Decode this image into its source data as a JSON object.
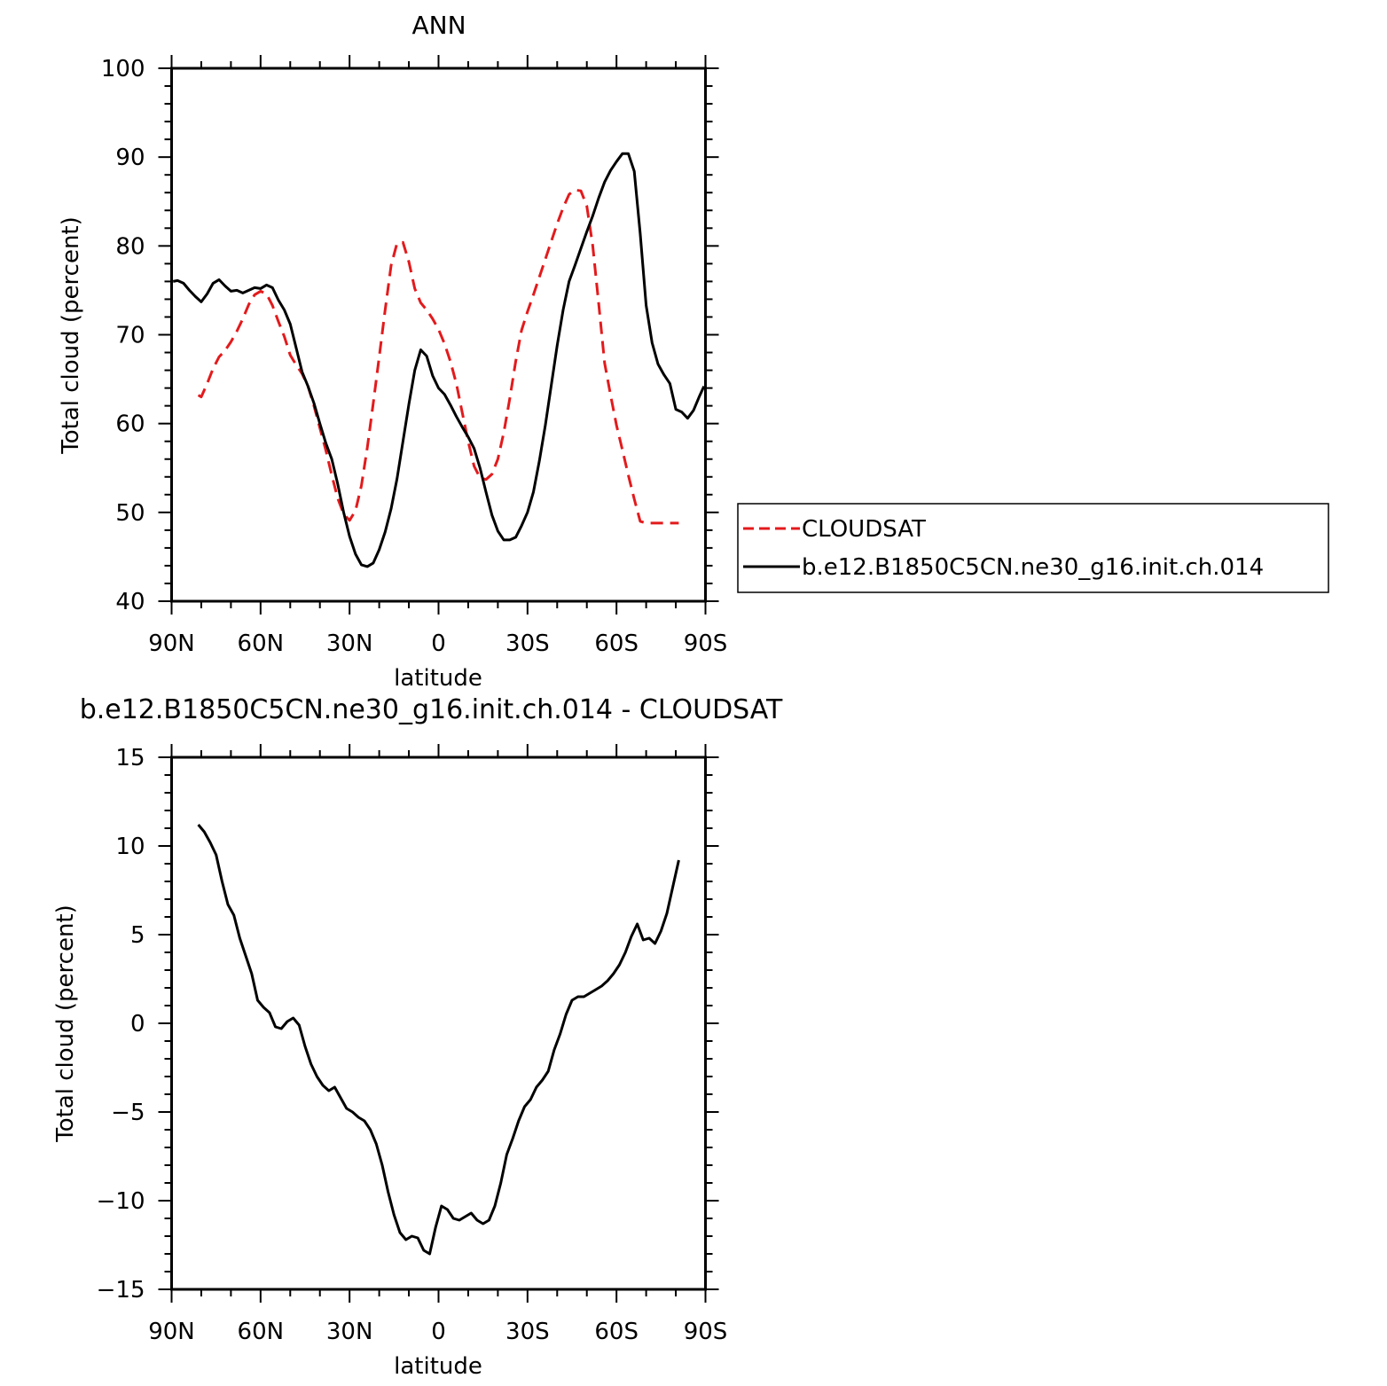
{
  "colors": {
    "cloudsat": "#e31a1c",
    "model": "#000000",
    "axis": "#000000"
  },
  "chart_data": [
    {
      "type": "line",
      "title": "ANN",
      "xlabel": "latitude",
      "ylabel": "Total cloud  (percent)",
      "xlim": [
        90,
        -90
      ],
      "ylim": [
        40,
        100
      ],
      "yticks": [
        40,
        50,
        60,
        70,
        80,
        90,
        100
      ],
      "xticks": [
        90,
        60,
        30,
        0,
        -30,
        -60,
        -90
      ],
      "xticklabels": [
        "90N",
        "60N",
        "30N",
        "0",
        "30S",
        "60S",
        "90S"
      ],
      "legend": {
        "placement": "right",
        "entries": [
          "CLOUDSAT",
          "b.e12.B1850C5CN.ne30_g16.init.ch.014"
        ]
      },
      "series": [
        {
          "name": "CLOUDSAT",
          "style": "dashed",
          "x": [
            81,
            80,
            78,
            76,
            74,
            72,
            70,
            68,
            66,
            64,
            62,
            60,
            58,
            56,
            54,
            52,
            50,
            48,
            46,
            44,
            42,
            40,
            38,
            36,
            34,
            32,
            30,
            28,
            26,
            24,
            22,
            20,
            18,
            16,
            14,
            12,
            10,
            8,
            6,
            4,
            2,
            0,
            -2,
            -4,
            -6,
            -8,
            -10,
            -12,
            -14,
            -16,
            -18,
            -20,
            -22,
            -24,
            -26,
            -28,
            -30,
            -32,
            -34,
            -36,
            -38,
            -40,
            -42,
            -44,
            -46,
            -48,
            -50,
            -52,
            -54,
            -56,
            -58,
            -60,
            -62,
            -64,
            -66,
            -68,
            -70,
            -72,
            -74,
            -76,
            -78,
            -80,
            -81
          ],
          "y": [
            63.2,
            63.0,
            64.5,
            66.2,
            67.5,
            68.2,
            69.2,
            70.4,
            71.8,
            73.4,
            74.5,
            74.9,
            74.6,
            73.3,
            71.5,
            69.8,
            67.7,
            66.6,
            65.6,
            64.2,
            62.0,
            59.5,
            57.0,
            54.2,
            51.6,
            49.8,
            49.1,
            50.2,
            53.0,
            57.3,
            62.3,
            67.5,
            72.8,
            77.8,
            80.3,
            80.4,
            78.2,
            75.2,
            73.6,
            72.8,
            71.8,
            70.6,
            69.0,
            67.0,
            64.5,
            61.2,
            58.0,
            55.2,
            53.9,
            53.7,
            54.3,
            56.0,
            59.0,
            62.8,
            67.0,
            70.5,
            72.6,
            74.5,
            76.5,
            78.5,
            80.5,
            82.5,
            84.3,
            85.8,
            86.3,
            86.2,
            84.5,
            80.0,
            73.5,
            66.8,
            63.2,
            59.8,
            57.0,
            54.2,
            51.5,
            49.0,
            48.8,
            48.8,
            48.8,
            48.8,
            48.8,
            48.8,
            48.8
          ]
        },
        {
          "name": "b.e12.B1850C5CN.ne30_g16.init.ch.014",
          "style": "solid",
          "x": [
            89.5,
            88,
            86,
            84,
            82,
            80,
            78,
            76,
            74,
            72,
            70,
            68,
            66,
            64,
            62,
            60,
            58,
            56,
            54,
            52,
            50,
            48,
            46,
            44,
            42,
            40,
            38,
            36,
            34,
            32,
            30,
            28,
            26,
            24,
            22,
            20,
            18,
            16,
            14,
            12,
            10,
            8,
            6,
            4,
            2,
            0,
            -2,
            -4,
            -6,
            -8,
            -10,
            -12,
            -14,
            -16,
            -18,
            -20,
            -22,
            -24,
            -26,
            -28,
            -30,
            -32,
            -34,
            -36,
            -38,
            -40,
            -42,
            -44,
            -46,
            -48,
            -50,
            -52,
            -54,
            -56,
            -58,
            -60,
            -62,
            -64,
            -66,
            -68,
            -70,
            -72,
            -74,
            -76,
            -78,
            -80,
            -82,
            -84,
            -86,
            -88,
            -89.5
          ],
          "y": [
            76.0,
            76.1,
            75.8,
            75.0,
            74.3,
            73.7,
            74.6,
            75.8,
            76.2,
            75.5,
            74.9,
            75.0,
            74.7,
            75.0,
            75.3,
            75.2,
            75.6,
            75.3,
            73.9,
            72.8,
            71.2,
            68.5,
            65.8,
            64.2,
            62.3,
            60.0,
            57.8,
            56.0,
            53.2,
            50.0,
            47.3,
            45.3,
            44.1,
            43.9,
            44.3,
            45.8,
            47.8,
            50.4,
            53.8,
            58.0,
            62.2,
            66.0,
            68.3,
            67.6,
            65.4,
            64.0,
            63.3,
            62.1,
            60.8,
            59.6,
            58.5,
            57.2,
            55.0,
            52.3,
            49.7,
            47.9,
            46.9,
            46.9,
            47.2,
            48.5,
            50.0,
            52.3,
            55.8,
            59.8,
            64.3,
            68.8,
            72.8,
            76.0,
            77.8,
            79.7,
            81.6,
            83.4,
            85.4,
            87.2,
            88.5,
            89.5,
            90.4,
            90.4,
            88.4,
            81.4,
            73.3,
            69.1,
            66.7,
            65.5,
            64.5,
            61.6,
            61.3,
            60.6,
            61.5,
            63.1,
            64.2
          ]
        }
      ]
    },
    {
      "type": "line",
      "title": "b.e12.B1850C5CN.ne30_g16.init.ch.014 - CLOUDSAT",
      "xlabel": "latitude",
      "ylabel": "Total cloud (percent)",
      "xlim": [
        90,
        -90
      ],
      "ylim": [
        -15,
        15
      ],
      "yticks": [
        -15,
        -10,
        -5,
        0,
        5,
        10,
        15
      ],
      "yticklabels": [
        "−15",
        "−10",
        "−5",
        "0",
        "5",
        "10",
        "15"
      ],
      "xticks": [
        90,
        60,
        30,
        0,
        -30,
        -60,
        -90
      ],
      "xticklabels": [
        "90N",
        "60N",
        "30N",
        "0",
        "30S",
        "60S",
        "90S"
      ],
      "series": [
        {
          "style": "solid",
          "x": [
            81,
            79,
            77,
            75,
            73,
            71,
            69,
            67,
            65,
            63,
            61,
            59,
            57,
            55,
            53,
            51,
            49,
            47,
            45,
            43,
            41,
            39,
            37,
            35,
            33,
            31,
            29,
            27,
            25,
            23,
            21,
            19,
            17,
            15,
            13,
            11,
            9,
            7,
            5,
            3,
            1,
            -1,
            -3,
            -5,
            -7,
            -9,
            -11,
            -13,
            -15,
            -17,
            -19,
            -21,
            -23,
            -25,
            -27,
            -29,
            -31,
            -33,
            -35,
            -37,
            -39,
            -41,
            -43,
            -45,
            -47,
            -49,
            -51,
            -53,
            -55,
            -57,
            -59,
            -61,
            -63,
            -65,
            -67,
            -69,
            -71,
            -73,
            -75,
            -77,
            -79,
            -81
          ],
          "y": [
            11.2,
            10.8,
            10.2,
            9.5,
            8.0,
            6.7,
            6.1,
            4.8,
            3.8,
            2.8,
            1.3,
            0.9,
            0.6,
            -0.2,
            -0.3,
            0.1,
            0.3,
            -0.1,
            -1.3,
            -2.3,
            -3.0,
            -3.5,
            -3.8,
            -3.6,
            -4.2,
            -4.8,
            -5.0,
            -5.3,
            -5.5,
            -6.0,
            -6.8,
            -8.0,
            -9.5,
            -10.8,
            -11.8,
            -12.2,
            -12.0,
            -12.1,
            -12.8,
            -13.0,
            -11.5,
            -10.3,
            -10.5,
            -11.0,
            -11.1,
            -10.9,
            -10.7,
            -11.1,
            -11.3,
            -11.1,
            -10.3,
            -9.0,
            -7.4,
            -6.5,
            -5.5,
            -4.7,
            -4.3,
            -3.6,
            -3.2,
            -2.7,
            -1.5,
            -0.6,
            0.5,
            1.3,
            1.5,
            1.5,
            1.7,
            1.9,
            2.1,
            2.4,
            2.8,
            3.3,
            4.0,
            4.9,
            5.6,
            4.7,
            4.8,
            4.5,
            5.2,
            6.2,
            7.7,
            9.2
          ]
        }
      ]
    }
  ]
}
